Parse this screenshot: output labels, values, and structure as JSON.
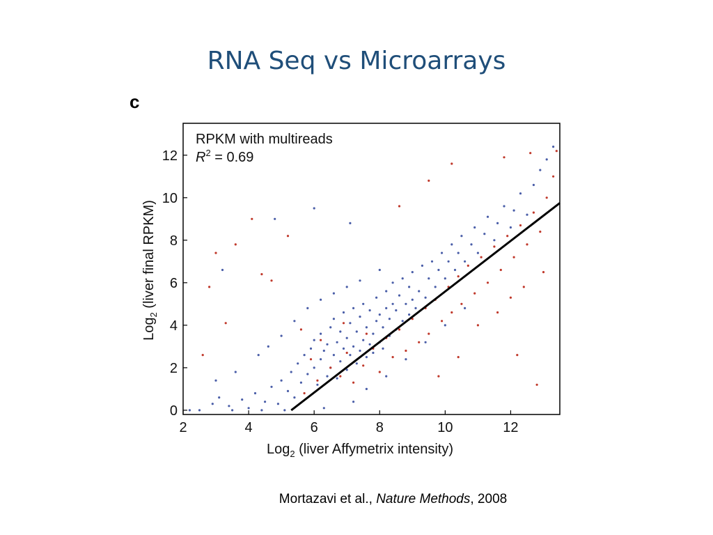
{
  "slide": {
    "title": "RNA Seq vs Microarrays",
    "citation": {
      "authors": "Mortazavi et al., ",
      "journal": "Nature Methods",
      "year": ", 2008"
    }
  },
  "chart_data": {
    "type": "scatter",
    "panel_label": "c",
    "annotation": "RPKM with multireads",
    "r_squared_label": "R",
    "r_squared_sup": "2",
    "r_squared_value": " = 0.69",
    "xlabel_prefix": "Log",
    "xlabel_sub": "2",
    "xlabel_suffix": " (liver Affymetrix intensity)",
    "ylabel_prefix": "Log",
    "ylabel_sub": "2",
    "ylabel_suffix": " (liver final RPKM)",
    "xlim": [
      2,
      13.5
    ],
    "ylim": [
      -0.2,
      13.5
    ],
    "x_ticks": [
      2,
      4,
      6,
      8,
      10,
      12
    ],
    "y_ticks": [
      0,
      2,
      4,
      6,
      8,
      10,
      12
    ],
    "fit_line": {
      "x": [
        5.3,
        13.5
      ],
      "y": [
        0,
        9.75
      ]
    },
    "series_colors": [
      "#4a5ea8",
      "#c0392b"
    ],
    "grid": false,
    "series": [
      {
        "color": "#4a5ea8",
        "points": [
          [
            2.5,
            0
          ],
          [
            2.9,
            0.3
          ],
          [
            3.1,
            0.6
          ],
          [
            3.4,
            0.2
          ],
          [
            3.8,
            0.5
          ],
          [
            4.0,
            0.1
          ],
          [
            4.2,
            0.8
          ],
          [
            4.5,
            0.4
          ],
          [
            4.7,
            1.1
          ],
          [
            4.9,
            0.3
          ],
          [
            5.0,
            1.4
          ],
          [
            5.2,
            0.9
          ],
          [
            5.3,
            1.8
          ],
          [
            5.4,
            0.6
          ],
          [
            5.5,
            2.2
          ],
          [
            5.6,
            1.3
          ],
          [
            5.7,
            2.6
          ],
          [
            5.8,
            1.7
          ],
          [
            5.9,
            2.9
          ],
          [
            6.0,
            2.0
          ],
          [
            6.0,
            3.3
          ],
          [
            6.1,
            1.2
          ],
          [
            6.2,
            2.4
          ],
          [
            6.2,
            3.6
          ],
          [
            6.3,
            2.8
          ],
          [
            6.4,
            1.6
          ],
          [
            6.4,
            3.1
          ],
          [
            6.5,
            2.0
          ],
          [
            6.5,
            3.9
          ],
          [
            6.6,
            2.6
          ],
          [
            6.6,
            4.3
          ],
          [
            6.7,
            1.5
          ],
          [
            6.7,
            3.2
          ],
          [
            6.8,
            2.3
          ],
          [
            6.8,
            3.7
          ],
          [
            6.9,
            2.9
          ],
          [
            6.9,
            4.6
          ],
          [
            7.0,
            1.9
          ],
          [
            7.0,
            3.4
          ],
          [
            7.1,
            2.6
          ],
          [
            7.1,
            4.1
          ],
          [
            7.2,
            3.0
          ],
          [
            7.2,
            4.8
          ],
          [
            7.3,
            2.2
          ],
          [
            7.3,
            3.7
          ],
          [
            7.4,
            2.8
          ],
          [
            7.4,
            4.4
          ],
          [
            7.5,
            3.3
          ],
          [
            7.5,
            5.0
          ],
          [
            7.6,
            2.5
          ],
          [
            7.6,
            3.9
          ],
          [
            7.7,
            3.1
          ],
          [
            7.7,
            4.7
          ],
          [
            7.8,
            2.7
          ],
          [
            7.8,
            3.6
          ],
          [
            7.9,
            4.2
          ],
          [
            7.9,
            5.3
          ],
          [
            8.0,
            3.2
          ],
          [
            8.0,
            4.5
          ],
          [
            8.1,
            2.9
          ],
          [
            8.1,
            3.9
          ],
          [
            8.2,
            4.8
          ],
          [
            8.2,
            5.6
          ],
          [
            8.3,
            3.5
          ],
          [
            8.3,
            4.3
          ],
          [
            8.4,
            5.0
          ],
          [
            8.4,
            6.0
          ],
          [
            8.5,
            3.8
          ],
          [
            8.5,
            4.7
          ],
          [
            8.6,
            5.4
          ],
          [
            8.7,
            4.2
          ],
          [
            8.7,
            6.2
          ],
          [
            8.8,
            5.0
          ],
          [
            8.9,
            4.5
          ],
          [
            8.9,
            5.8
          ],
          [
            9.0,
            5.2
          ],
          [
            9.0,
            6.5
          ],
          [
            9.1,
            4.8
          ],
          [
            9.2,
            5.6
          ],
          [
            9.3,
            6.8
          ],
          [
            9.4,
            5.3
          ],
          [
            9.5,
            6.2
          ],
          [
            9.6,
            7.0
          ],
          [
            9.7,
            5.8
          ],
          [
            9.8,
            6.6
          ],
          [
            9.9,
            7.4
          ],
          [
            10.0,
            6.2
          ],
          [
            10.1,
            7.0
          ],
          [
            10.2,
            7.8
          ],
          [
            10.3,
            6.6
          ],
          [
            10.4,
            7.4
          ],
          [
            10.5,
            8.2
          ],
          [
            10.6,
            7.0
          ],
          [
            10.8,
            7.8
          ],
          [
            10.9,
            8.6
          ],
          [
            11.0,
            7.4
          ],
          [
            11.2,
            8.3
          ],
          [
            11.3,
            9.1
          ],
          [
            11.5,
            8.0
          ],
          [
            11.6,
            8.8
          ],
          [
            11.8,
            9.6
          ],
          [
            12.0,
            8.6
          ],
          [
            12.1,
            9.4
          ],
          [
            12.3,
            10.2
          ],
          [
            12.5,
            9.2
          ],
          [
            12.7,
            10.6
          ],
          [
            12.9,
            11.3
          ],
          [
            13.1,
            11.8
          ],
          [
            13.3,
            12.4
          ],
          [
            2.2,
            0.0
          ],
          [
            3.0,
            1.4
          ],
          [
            3.6,
            1.8
          ],
          [
            4.3,
            2.6
          ],
          [
            4.6,
            3.0
          ],
          [
            5.0,
            3.5
          ],
          [
            5.4,
            4.2
          ],
          [
            5.8,
            4.8
          ],
          [
            6.2,
            5.2
          ],
          [
            6.6,
            5.5
          ],
          [
            7.0,
            5.8
          ],
          [
            7.4,
            6.1
          ],
          [
            8.0,
            6.6
          ],
          [
            3.2,
            6.6
          ],
          [
            4.8,
            9.0
          ],
          [
            6.0,
            9.5
          ],
          [
            7.1,
            8.8
          ],
          [
            3.5,
            0.0
          ],
          [
            4.4,
            0.0
          ],
          [
            5.1,
            0.0
          ],
          [
            6.3,
            0.1
          ],
          [
            7.2,
            0.4
          ],
          [
            7.6,
            1.0
          ],
          [
            8.2,
            1.6
          ],
          [
            8.8,
            2.4
          ],
          [
            9.4,
            3.2
          ],
          [
            10.0,
            4.0
          ],
          [
            10.6,
            4.8
          ]
        ]
      },
      {
        "color": "#c0392b",
        "points": [
          [
            2.6,
            2.6
          ],
          [
            2.8,
            5.8
          ],
          [
            3.0,
            7.4
          ],
          [
            3.3,
            4.1
          ],
          [
            3.6,
            7.8
          ],
          [
            4.1,
            9.0
          ],
          [
            4.4,
            6.4
          ],
          [
            4.7,
            6.1
          ],
          [
            5.2,
            8.2
          ],
          [
            5.6,
            3.8
          ],
          [
            5.9,
            2.4
          ],
          [
            6.2,
            3.3
          ],
          [
            6.5,
            2.0
          ],
          [
            6.8,
            1.6
          ],
          [
            7.0,
            2.7
          ],
          [
            7.2,
            1.3
          ],
          [
            7.5,
            2.1
          ],
          [
            7.8,
            2.9
          ],
          [
            8.0,
            1.8
          ],
          [
            8.2,
            3.4
          ],
          [
            8.4,
            2.5
          ],
          [
            8.6,
            3.8
          ],
          [
            8.8,
            2.8
          ],
          [
            9.0,
            4.3
          ],
          [
            9.2,
            3.2
          ],
          [
            9.4,
            4.8
          ],
          [
            9.5,
            3.6
          ],
          [
            9.7,
            5.2
          ],
          [
            9.9,
            4.2
          ],
          [
            10.1,
            5.8
          ],
          [
            10.2,
            4.6
          ],
          [
            10.4,
            6.3
          ],
          [
            10.5,
            5.0
          ],
          [
            10.7,
            6.8
          ],
          [
            10.9,
            5.5
          ],
          [
            11.1,
            7.2
          ],
          [
            11.3,
            6.0
          ],
          [
            11.5,
            7.7
          ],
          [
            11.7,
            6.6
          ],
          [
            11.9,
            8.2
          ],
          [
            12.1,
            7.2
          ],
          [
            12.3,
            8.7
          ],
          [
            12.5,
            7.8
          ],
          [
            12.7,
            9.3
          ],
          [
            12.9,
            8.4
          ],
          [
            13.1,
            10.0
          ],
          [
            13.3,
            11.0
          ],
          [
            13.4,
            12.2
          ],
          [
            11.0,
            4.0
          ],
          [
            11.6,
            4.6
          ],
          [
            12.0,
            5.3
          ],
          [
            12.4,
            5.8
          ],
          [
            13.0,
            6.5
          ],
          [
            12.2,
            2.6
          ],
          [
            12.8,
            1.2
          ],
          [
            9.5,
            10.8
          ],
          [
            10.2,
            11.6
          ],
          [
            11.8,
            11.9
          ],
          [
            12.6,
            12.1
          ],
          [
            8.6,
            9.6
          ],
          [
            7.6,
            3.6
          ],
          [
            6.9,
            4.1
          ],
          [
            6.1,
            1.4
          ],
          [
            5.7,
            0.8
          ],
          [
            9.8,
            1.6
          ],
          [
            10.4,
            2.5
          ]
        ]
      }
    ]
  }
}
